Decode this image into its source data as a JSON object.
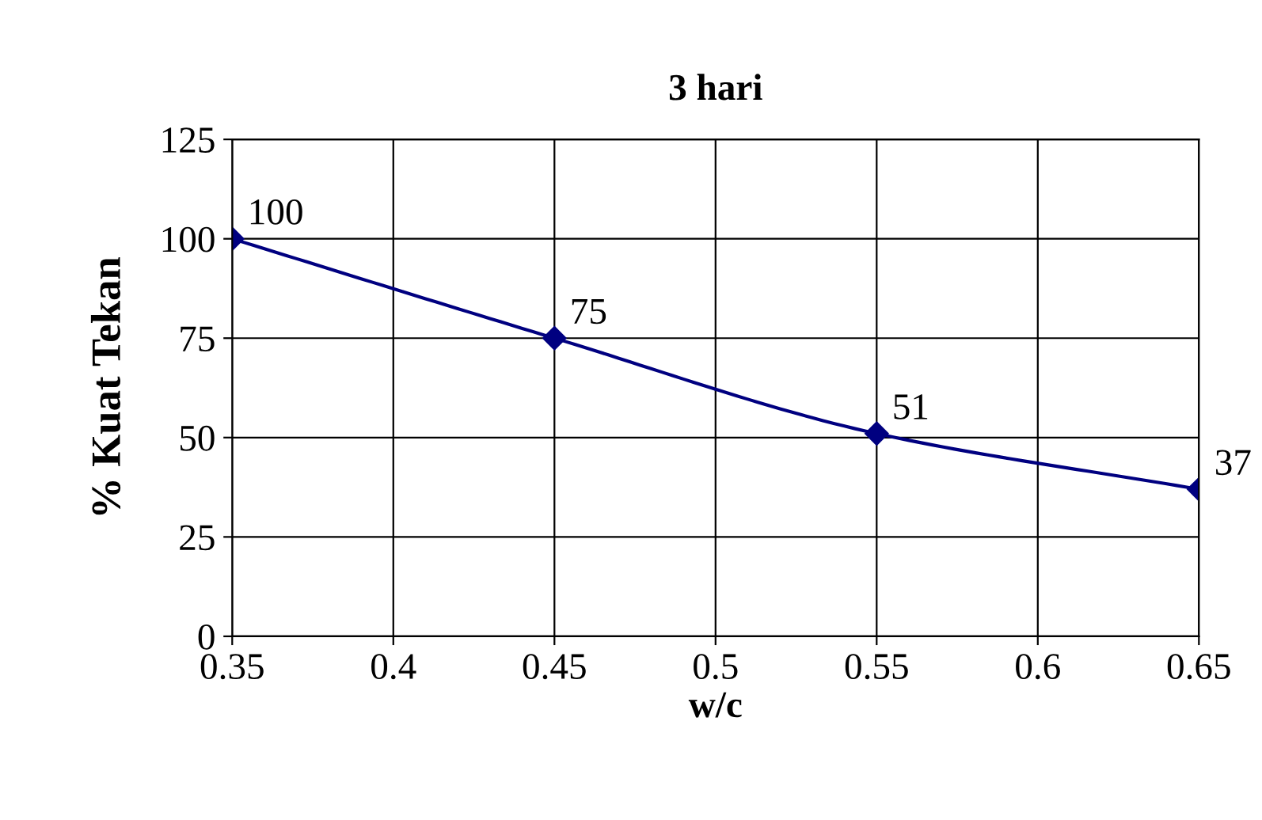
{
  "chart_data": {
    "type": "line",
    "title": "3 hari",
    "xlabel": "w/c",
    "ylabel": "% Kuat Tekan",
    "x": [
      0.35,
      0.45,
      0.55,
      0.65
    ],
    "series": [
      {
        "color": "#000080",
        "values": [
          100,
          75,
          51,
          37
        ]
      }
    ],
    "xlim": [
      0.35,
      0.65
    ],
    "xticks": [
      0.35,
      0.4,
      0.45,
      0.5,
      0.55,
      0.6,
      0.65
    ],
    "ylim": [
      0,
      125
    ],
    "yticks": [
      0,
      25,
      50,
      75,
      100,
      125
    ],
    "grid": true,
    "marker": "diamond",
    "line_style": "solid",
    "data_labels": true
  }
}
